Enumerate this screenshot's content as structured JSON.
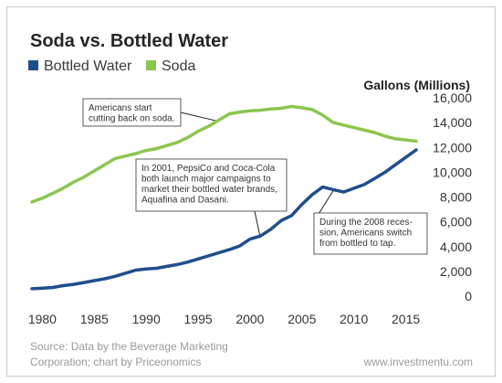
{
  "chart_data": {
    "type": "line",
    "title": "Soda vs. Bottled Water",
    "ylabel": "Gallons (Millions)",
    "xlabel": "",
    "xlim": [
      1979,
      2016
    ],
    "ylim": [
      0,
      16000
    ],
    "x_ticks": [
      1980,
      1985,
      1990,
      1995,
      2000,
      2005,
      2010,
      2015
    ],
    "y_ticks": [
      0,
      2000,
      4000,
      6000,
      8000,
      10000,
      12000,
      14000,
      16000
    ],
    "y_tick_labels": [
      "0",
      "2,000",
      "4,000",
      "6,000",
      "8,000",
      "10,000",
      "12,000",
      "14,000",
      "16,000"
    ],
    "grid": false,
    "legend_position": "top-left",
    "series": [
      {
        "name": "Bottled Water",
        "color": "#1f4e8c",
        "x": [
          1979,
          1980,
          1981,
          1982,
          1983,
          1984,
          1985,
          1986,
          1987,
          1988,
          1989,
          1990,
          1991,
          1992,
          1993,
          1994,
          1995,
          1996,
          1997,
          1998,
          1999,
          2000,
          2001,
          2002,
          2003,
          2004,
          2005,
          2006,
          2007,
          2008,
          2009,
          2010,
          2011,
          2012,
          2013,
          2014,
          2015,
          2016
        ],
        "values": [
          600,
          650,
          700,
          850,
          950,
          1100,
          1250,
          1400,
          1600,
          1850,
          2100,
          2200,
          2250,
          2400,
          2550,
          2750,
          3000,
          3250,
          3500,
          3750,
          4050,
          4600,
          4850,
          5400,
          6100,
          6500,
          7400,
          8200,
          8800,
          8600,
          8400,
          8700,
          9000,
          9500,
          10000,
          10600,
          11200,
          11800
        ]
      },
      {
        "name": "Soda",
        "color": "#8bc650",
        "x": [
          1979,
          1980,
          1981,
          1982,
          1983,
          1984,
          1985,
          1986,
          1987,
          1988,
          1989,
          1990,
          1991,
          1992,
          1993,
          1994,
          1995,
          1996,
          1997,
          1998,
          1999,
          2000,
          2001,
          2002,
          2003,
          2004,
          2005,
          2006,
          2007,
          2008,
          2009,
          2010,
          2011,
          2012,
          2013,
          2014,
          2015,
          2016
        ],
        "values": [
          7600,
          7900,
          8300,
          8700,
          9200,
          9600,
          10100,
          10600,
          11100,
          11300,
          11500,
          11750,
          11900,
          12150,
          12400,
          12800,
          13300,
          13700,
          14200,
          14700,
          14850,
          14950,
          15000,
          15100,
          15150,
          15300,
          15200,
          15050,
          14600,
          14000,
          13800,
          13600,
          13400,
          13200,
          12900,
          12700,
          12600,
          12500
        ]
      }
    ],
    "annotations": [
      {
        "lines": [
          "Americans start",
          "cutting back on soda."
        ],
        "target_x": 1997,
        "target_y": 14100
      },
      {
        "lines": [
          "In 2001, PepsiCo and Coca-Cola",
          "both launch major campaigns to",
          "market their bottled water brands,",
          "Aquafina and Dasani."
        ],
        "target_x": 2001,
        "target_y": 4700
      },
      {
        "lines": [
          "During the 2008 reces-",
          "sion, Americans switch",
          "from bottled to tap."
        ],
        "target_x": 2008,
        "target_y": 8500
      }
    ],
    "source_lines": [
      "Source: Data by the Beverage Marketing",
      "Corporation; chart by Priceonomics"
    ],
    "credit": "www.investmentu.com"
  }
}
